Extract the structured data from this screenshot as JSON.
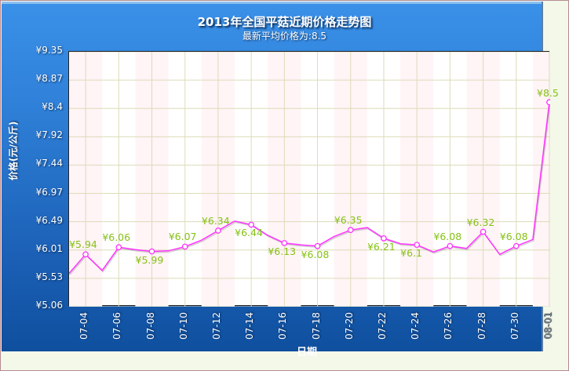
{
  "title": "2013年全国平菇近期价格走势图",
  "subtitle": "最新平均价格为:8.5",
  "y_axis_label": "价格(元/公斤)",
  "x_axis_label": "日期",
  "colors": {
    "panel": "#2f80d8",
    "line": "#ff33ff",
    "data_label": "#86c114",
    "grid": "#dcdcb8",
    "band": "#fff4f6"
  },
  "chart_data": {
    "type": "line",
    "title": "2013年全国平菇近期价格走势图",
    "subtitle": "最新平均价格为:8.5",
    "xlabel": "日期",
    "ylabel": "价格(元/公斤)",
    "ylim": [
      5.06,
      9.35
    ],
    "y_ticks": [
      "¥5.06",
      "¥5.53",
      "¥6.01",
      "¥6.49",
      "¥6.97",
      "¥7.44",
      "¥7.92",
      "¥8.4",
      "¥8.87",
      "¥9.35"
    ],
    "x_ticks": [
      "07-04",
      "07-06",
      "07-08",
      "07-10",
      "07-12",
      "07-14",
      "07-16",
      "07-18",
      "07-20",
      "07-22",
      "07-24",
      "07-26",
      "07-28",
      "07-30",
      "08-01"
    ],
    "grid": true,
    "legend": "none",
    "x": [
      "07-03",
      "07-04",
      "07-05",
      "07-06",
      "07-07",
      "07-08",
      "07-09",
      "07-10",
      "07-11",
      "07-12",
      "07-13",
      "07-14",
      "07-15",
      "07-16",
      "07-17",
      "07-18",
      "07-19",
      "07-20",
      "07-21",
      "07-22",
      "07-23",
      "07-24",
      "07-25",
      "07-26",
      "07-27",
      "07-28",
      "07-29",
      "07-30",
      "07-31",
      "08-01"
    ],
    "series": [
      {
        "name": "平菇价格",
        "values": [
          5.62,
          5.94,
          5.67,
          6.06,
          6.02,
          5.99,
          6.0,
          6.07,
          6.18,
          6.34,
          6.5,
          6.44,
          6.26,
          6.13,
          6.1,
          6.08,
          6.24,
          6.35,
          6.39,
          6.21,
          6.12,
          6.1,
          5.98,
          6.08,
          6.04,
          6.32,
          5.94,
          6.08,
          6.19,
          8.5
        ]
      }
    ],
    "annotations": [
      {
        "x": "07-04",
        "text": "¥5.94"
      },
      {
        "x": "07-06",
        "text": "¥6.06"
      },
      {
        "x": "07-08",
        "text": "¥5.99"
      },
      {
        "x": "07-10",
        "text": "¥6.07"
      },
      {
        "x": "07-12",
        "text": "¥6.34"
      },
      {
        "x": "07-14",
        "text": "¥6.44"
      },
      {
        "x": "07-16",
        "text": "¥6.13"
      },
      {
        "x": "07-18",
        "text": "¥6.08"
      },
      {
        "x": "07-20",
        "text": "¥6.35"
      },
      {
        "x": "07-22",
        "text": "¥6.21"
      },
      {
        "x": "07-24",
        "text": "¥6.1"
      },
      {
        "x": "07-26",
        "text": "¥6.08"
      },
      {
        "x": "07-28",
        "text": "¥6.32"
      },
      {
        "x": "07-30",
        "text": "¥6.08"
      },
      {
        "x": "08-01",
        "text": "¥8.5"
      }
    ]
  }
}
